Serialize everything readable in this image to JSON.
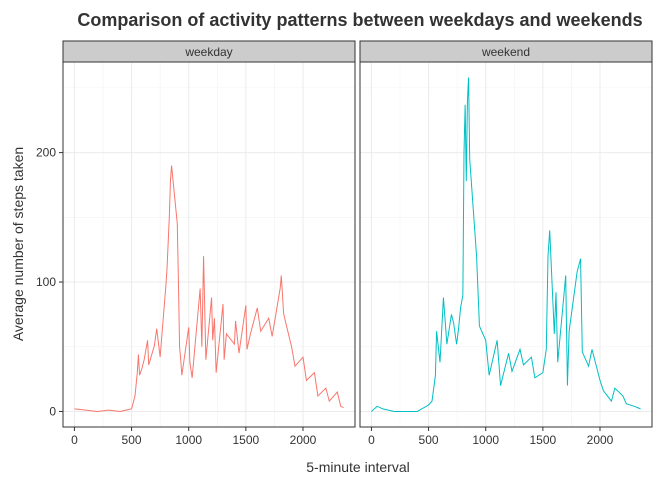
{
  "chart_data": {
    "type": "line",
    "title": "Comparison of activity patterns between weekdays and weekends",
    "xlabel": "5-minute interval",
    "ylabel": "Average number of steps taken",
    "xlim": [
      -100,
      2455
    ],
    "ylim": [
      -12,
      270
    ],
    "x_ticks": [
      0,
      500,
      1000,
      1500,
      2000
    ],
    "y_ticks": [
      0,
      100,
      200
    ],
    "grid": true,
    "legend": "none",
    "panels": [
      {
        "name": "weekday",
        "color": "#f8766d",
        "x": [
          0,
          100,
          200,
          300,
          400,
          500,
          530,
          550,
          560,
          570,
          590,
          610,
          640,
          650,
          700,
          720,
          750,
          800,
          810,
          830,
          840,
          850,
          900,
          910,
          920,
          930,
          940,
          1000,
          1010,
          1030,
          1100,
          1115,
          1130,
          1150,
          1200,
          1210,
          1225,
          1240,
          1300,
          1310,
          1330,
          1400,
          1410,
          1440,
          1500,
          1510,
          1540,
          1600,
          1630,
          1700,
          1730,
          1800,
          1810,
          1830,
          1845,
          1900,
          1930,
          2000,
          2030,
          2100,
          2130,
          2200,
          2230,
          2300,
          2330,
          2355
        ],
        "y": [
          2,
          1,
          0,
          1,
          0,
          2,
          12,
          30,
          44,
          28,
          33,
          40,
          55,
          36,
          51,
          64,
          42,
          97,
          110,
          150,
          178,
          190,
          145,
          100,
          50,
          40,
          28,
          65,
          38,
          26,
          95,
          50,
          120,
          40,
          88,
          55,
          72,
          30,
          83,
          40,
          60,
          52,
          70,
          45,
          82,
          48,
          60,
          80,
          62,
          72,
          58,
          95,
          105,
          76,
          70,
          50,
          35,
          42,
          24,
          30,
          12,
          18,
          8,
          15,
          4,
          3
        ]
      },
      {
        "name": "weekend",
        "color": "#00bfc4",
        "x": [
          0,
          50,
          100,
          200,
          300,
          400,
          500,
          530,
          560,
          570,
          600,
          630,
          660,
          700,
          720,
          745,
          760,
          780,
          800,
          810,
          820,
          830,
          840,
          850,
          860,
          900,
          920,
          945,
          1000,
          1030,
          1100,
          1130,
          1200,
          1230,
          1300,
          1330,
          1400,
          1430,
          1500,
          1530,
          1545,
          1560,
          1600,
          1615,
          1630,
          1700,
          1715,
          1730,
          1800,
          1830,
          1845,
          1900,
          1930,
          2000,
          2030,
          2100,
          2130,
          2200,
          2230,
          2300,
          2355
        ],
        "y": [
          0,
          4,
          2,
          0,
          0,
          0,
          5,
          8,
          28,
          62,
          38,
          88,
          52,
          75,
          68,
          52,
          62,
          80,
          90,
          200,
          237,
          178,
          240,
          258,
          195,
          145,
          120,
          66,
          55,
          28,
          55,
          20,
          45,
          31,
          48,
          36,
          42,
          26,
          30,
          48,
          120,
          140,
          60,
          92,
          38,
          105,
          20,
          62,
          108,
          118,
          46,
          35,
          48,
          24,
          16,
          8,
          18,
          12,
          6,
          4,
          2
        ]
      }
    ]
  }
}
